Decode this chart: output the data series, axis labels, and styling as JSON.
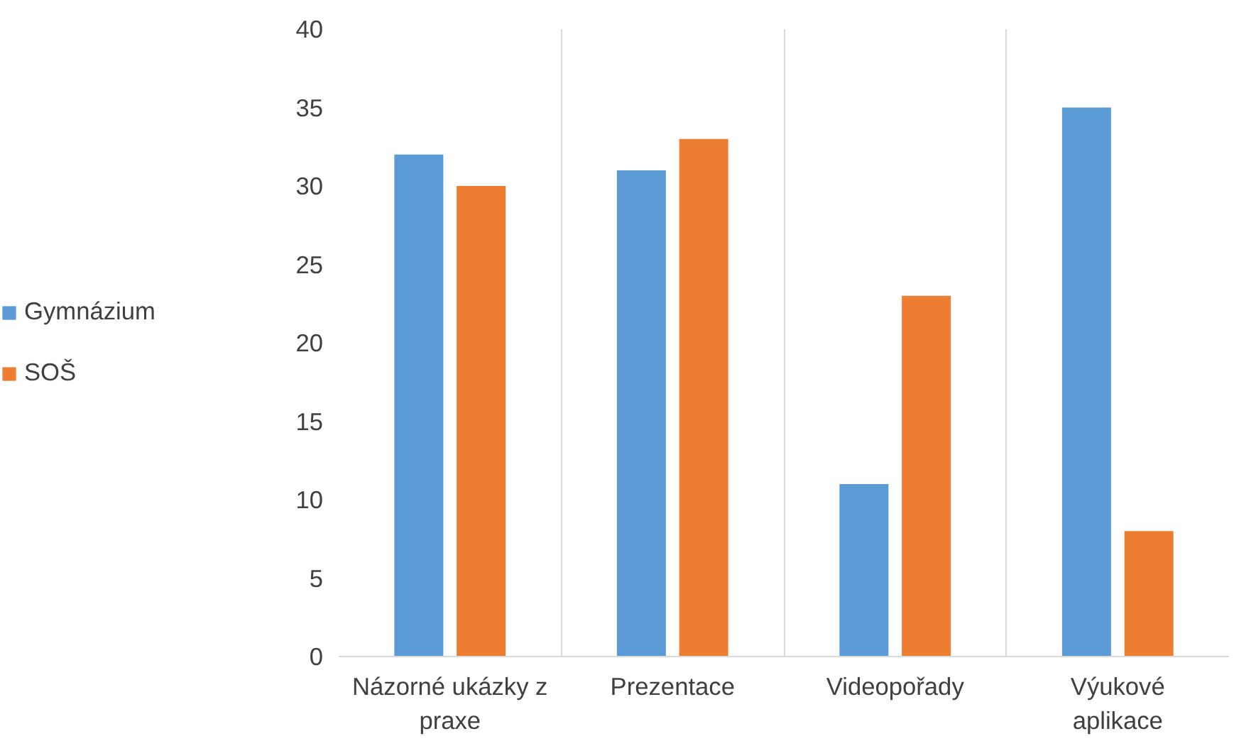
{
  "chart_data": {
    "type": "bar",
    "categories": [
      "Názorné ukázky z praxe",
      "Prezentace",
      "Videopořady",
      "Výukové aplikace"
    ],
    "series": [
      {
        "name": "Gymnázium",
        "color": "#5b9bd5",
        "values": [
          32,
          31,
          11,
          35
        ]
      },
      {
        "name": "SOŠ",
        "color": "#ed7d31",
        "values": [
          30,
          33,
          23,
          8
        ]
      }
    ],
    "ylim": [
      0,
      40
    ],
    "yticks": [
      0,
      5,
      10,
      15,
      20,
      25,
      30,
      35,
      40
    ],
    "grid": "x",
    "legend": "left"
  }
}
